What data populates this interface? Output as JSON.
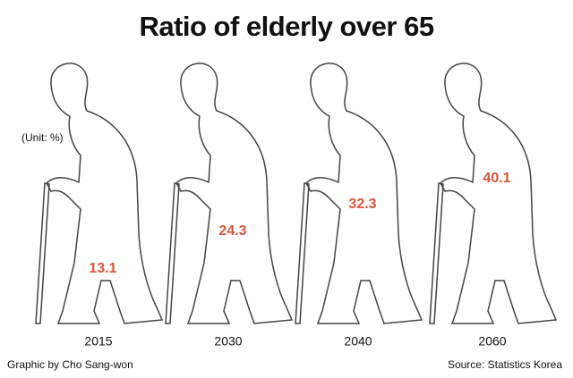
{
  "chart_data": {
    "type": "pictogram",
    "title": "Ratio of elderly over 65",
    "unit": "(Unit: %)",
    "categories": [
      "2015",
      "2030",
      "2040",
      "2060"
    ],
    "values": [
      13.1,
      24.3,
      32.3,
      40.1
    ],
    "color": "#d9533a",
    "credit": "Graphic by Cho Sang-won",
    "source": "Source: Statistics Korea"
  }
}
